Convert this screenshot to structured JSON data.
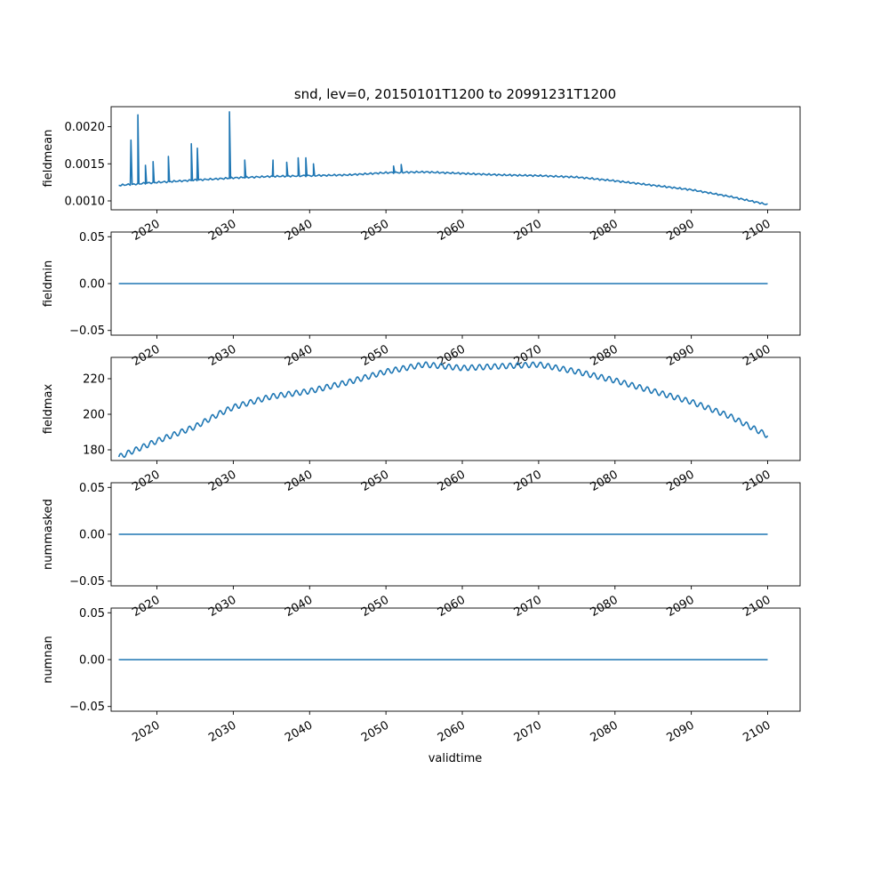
{
  "chart_data": {
    "type": "line",
    "title": "snd, lev=0, 20150101T1200 to 20991231T1200",
    "xlabel": "validtime",
    "xlim": [
      "2014-01-01",
      "2104-04-01"
    ],
    "xticks": [
      "2020",
      "2030",
      "2040",
      "2050",
      "2060",
      "2070",
      "2080",
      "2090",
      "2100"
    ],
    "panels": [
      {
        "ylabel": "fieldmean",
        "ylim": [
          0.00088,
          0.00227
        ],
        "yticks": [
          {
            "value": 0.001,
            "label": "0.0010"
          },
          {
            "value": 0.0015,
            "label": "0.0015"
          },
          {
            "value": 0.002,
            "label": "0.0020"
          }
        ],
        "x": [
          2015,
          2020,
          2025,
          2030,
          2035,
          2040,
          2045,
          2050,
          2055,
          2060,
          2065,
          2070,
          2075,
          2080,
          2085,
          2090,
          2095,
          2100
        ],
        "y": [
          0.00121,
          0.00125,
          0.00128,
          0.00131,
          0.00133,
          0.00134,
          0.00135,
          0.00138,
          0.00139,
          0.00137,
          0.00135,
          0.00134,
          0.00132,
          0.00127,
          0.00121,
          0.00115,
          0.00106,
          0.00095
        ],
        "spikes": [
          {
            "x": 2016.6,
            "y": 0.00182
          },
          {
            "x": 2017.5,
            "y": 0.00216
          },
          {
            "x": 2018.5,
            "y": 0.00148
          },
          {
            "x": 2019.5,
            "y": 0.00153
          },
          {
            "x": 2021.5,
            "y": 0.0016
          },
          {
            "x": 2024.5,
            "y": 0.00177
          },
          {
            "x": 2025.3,
            "y": 0.00171
          },
          {
            "x": 2029.5,
            "y": 0.0022
          },
          {
            "x": 2031.5,
            "y": 0.00155
          },
          {
            "x": 2035.2,
            "y": 0.00155
          },
          {
            "x": 2037.0,
            "y": 0.00152
          },
          {
            "x": 2038.5,
            "y": 0.00158
          },
          {
            "x": 2039.5,
            "y": 0.00158
          },
          {
            "x": 2040.5,
            "y": 0.0015
          },
          {
            "x": 2051.0,
            "y": 0.00147
          },
          {
            "x": 2052.0,
            "y": 0.00149
          }
        ]
      },
      {
        "ylabel": "fieldmin",
        "ylim": [
          -0.055,
          0.055
        ],
        "yticks": [
          {
            "value": -0.05,
            "label": "−0.05"
          },
          {
            "value": 0.0,
            "label": "0.00"
          },
          {
            "value": 0.05,
            "label": "0.05"
          }
        ],
        "x": [
          2015,
          2100
        ],
        "y": [
          0,
          0
        ]
      },
      {
        "ylabel": "fieldmax",
        "ylim": [
          174,
          232
        ],
        "yticks": [
          {
            "value": 180,
            "label": "180"
          },
          {
            "value": 200,
            "label": "200"
          },
          {
            "value": 220,
            "label": "220"
          }
        ],
        "x": [
          2015,
          2020,
          2025,
          2028,
          2030,
          2035,
          2040,
          2045,
          2050,
          2055,
          2060,
          2065,
          2070,
          2075,
          2080,
          2085,
          2090,
          2095,
          2100
        ],
        "y": [
          176,
          185,
          193,
          200,
          204,
          210,
          213,
          218,
          224,
          228,
          226,
          227,
          228,
          224,
          219,
          213,
          207,
          199,
          188
        ],
        "wiggle": 1.5
      },
      {
        "ylabel": "nummasked",
        "ylim": [
          -0.055,
          0.055
        ],
        "yticks": [
          {
            "value": -0.05,
            "label": "−0.05"
          },
          {
            "value": 0.0,
            "label": "0.00"
          },
          {
            "value": 0.05,
            "label": "0.05"
          }
        ],
        "x": [
          2015,
          2100
        ],
        "y": [
          0,
          0
        ]
      },
      {
        "ylabel": "numnan",
        "ylim": [
          -0.055,
          0.055
        ],
        "yticks": [
          {
            "value": -0.05,
            "label": "−0.05"
          },
          {
            "value": 0.0,
            "label": "0.00"
          },
          {
            "value": 0.05,
            "label": "0.05"
          }
        ],
        "x": [
          2015,
          2100
        ],
        "y": [
          0,
          0
        ]
      }
    ],
    "colors": {
      "line": "#1f77b4"
    },
    "grid": false,
    "legend": "none"
  }
}
